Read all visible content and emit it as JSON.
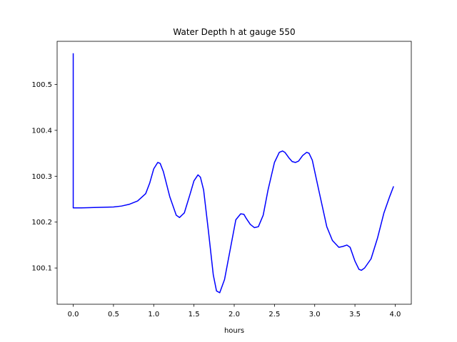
{
  "chart_data": {
    "type": "line",
    "title": "Water Depth h at gauge 550",
    "xlabel": "hours",
    "ylabel": "",
    "xlim": [
      -0.2,
      4.2
    ],
    "ylim": [
      100.021,
      100.594
    ],
    "xticks": [
      0.0,
      0.5,
      1.0,
      1.5,
      2.0,
      2.5,
      3.0,
      3.5,
      4.0
    ],
    "xtick_labels": [
      "0.0",
      "0.5",
      "1.0",
      "1.5",
      "2.0",
      "2.5",
      "3.0",
      "3.5",
      "4.0"
    ],
    "yticks": [
      100.1,
      100.2,
      100.3,
      100.4,
      100.5
    ],
    "ytick_labels": [
      "100.1",
      "100.2",
      "100.3",
      "100.4",
      "100.5"
    ],
    "grid": false,
    "legend": "none",
    "series": [
      {
        "color": "#0000ff",
        "x": [
          0.0,
          0.0,
          0.0,
          0.1,
          0.3,
          0.5,
          0.6,
          0.7,
          0.8,
          0.9,
          0.95,
          1.0,
          1.05,
          1.08,
          1.12,
          1.2,
          1.28,
          1.32,
          1.38,
          1.45,
          1.5,
          1.55,
          1.58,
          1.62,
          1.68,
          1.74,
          1.78,
          1.82,
          1.88,
          1.95,
          2.02,
          2.08,
          2.12,
          2.15,
          2.2,
          2.25,
          2.3,
          2.36,
          2.42,
          2.5,
          2.56,
          2.6,
          2.63,
          2.68,
          2.72,
          2.76,
          2.8,
          2.85,
          2.9,
          2.93,
          2.97,
          3.05,
          3.15,
          3.22,
          3.3,
          3.35,
          3.4,
          3.44,
          3.5,
          3.55,
          3.58,
          3.62,
          3.7,
          3.78,
          3.86,
          3.93,
          3.98
        ],
        "y": [
          100.568,
          100.231,
          100.231,
          100.231,
          100.232,
          100.233,
          100.235,
          100.239,
          100.246,
          100.262,
          100.285,
          100.316,
          100.33,
          100.328,
          100.31,
          100.255,
          100.215,
          100.21,
          100.22,
          100.26,
          100.29,
          100.303,
          100.298,
          100.27,
          100.18,
          100.085,
          100.05,
          100.046,
          100.075,
          100.14,
          100.205,
          100.218,
          100.217,
          100.208,
          100.195,
          100.188,
          100.19,
          100.215,
          100.27,
          100.33,
          100.352,
          100.355,
          100.352,
          100.34,
          100.332,
          100.33,
          100.333,
          100.345,
          100.352,
          100.35,
          100.335,
          100.27,
          100.19,
          100.16,
          100.145,
          100.147,
          100.15,
          100.145,
          100.115,
          100.097,
          100.095,
          100.1,
          100.12,
          100.165,
          100.22,
          100.255,
          100.278
        ]
      }
    ]
  }
}
